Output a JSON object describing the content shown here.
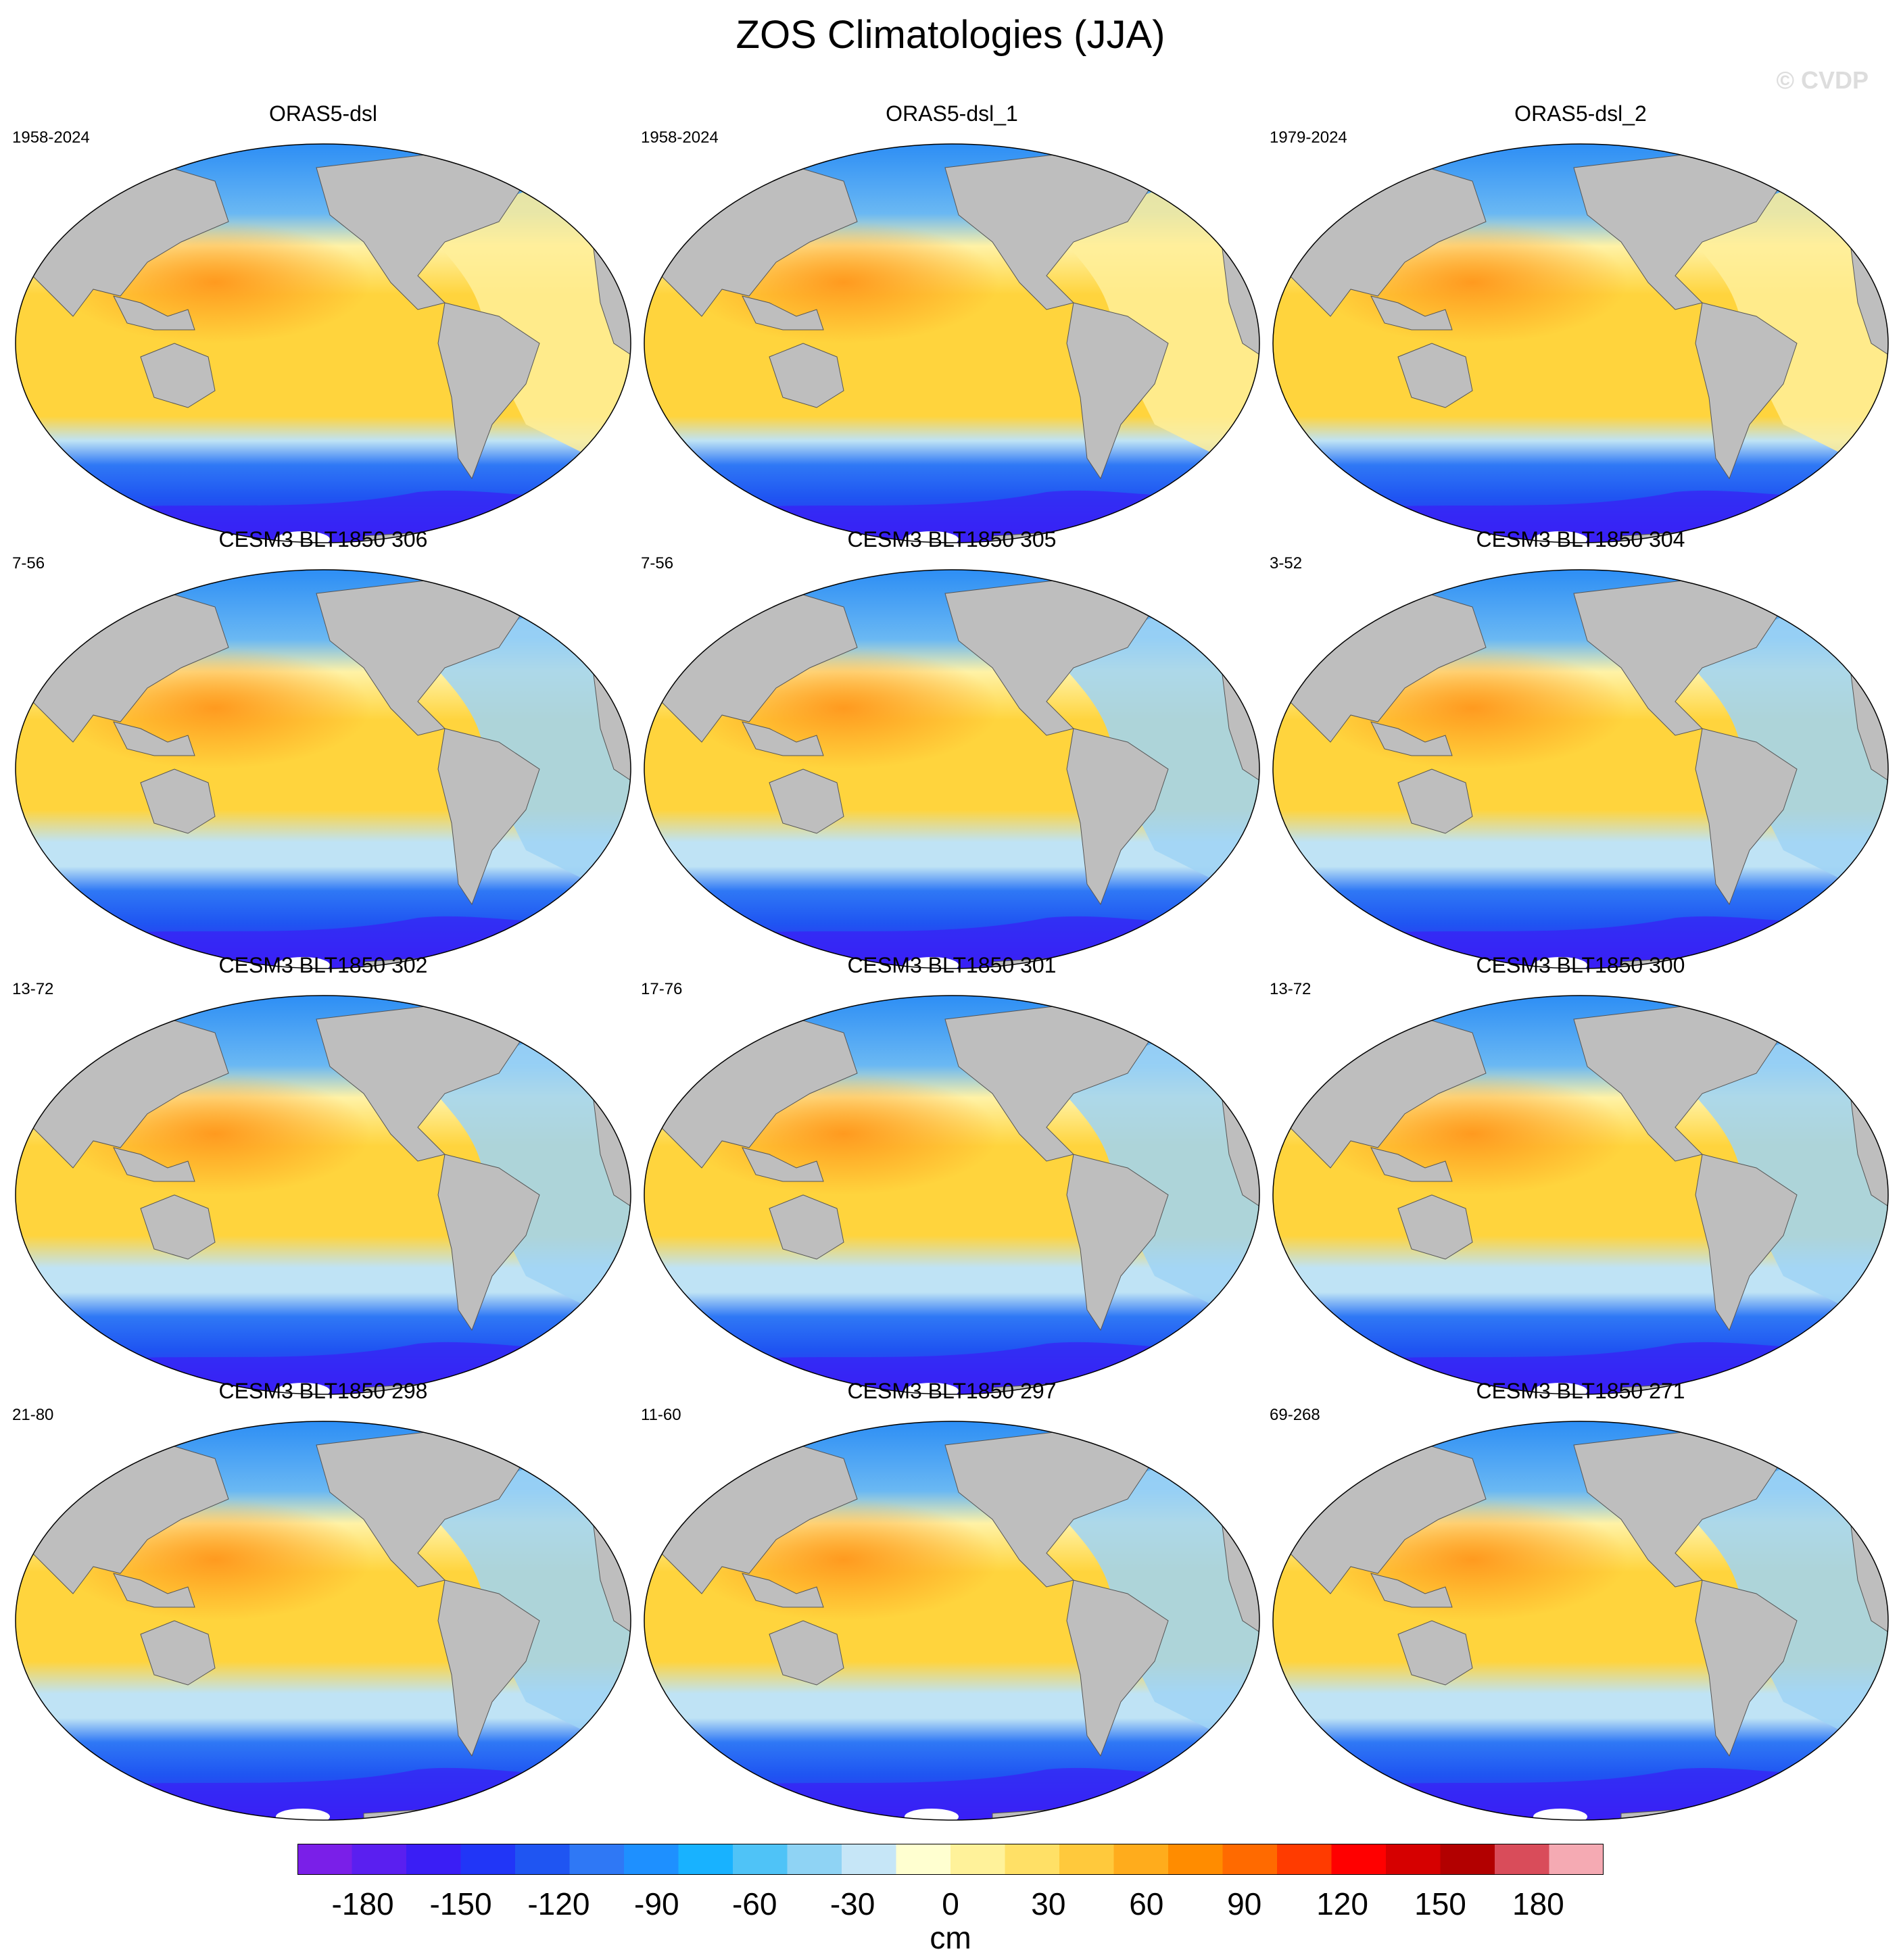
{
  "figure": {
    "title": "ZOS Climatologies (JJA)",
    "watermark": "© CVDP"
  },
  "panels": [
    {
      "title": "ORAS5-dsl",
      "years": "1958-2024"
    },
    {
      "title": "ORAS5-dsl_1",
      "years": "1958-2024"
    },
    {
      "title": "ORAS5-dsl_2",
      "years": "1979-2024"
    },
    {
      "title": "CESM3 BLT1850 306",
      "years": "7-56"
    },
    {
      "title": "CESM3 BLT1850 305",
      "years": "7-56"
    },
    {
      "title": "CESM3 BLT1850 304",
      "years": "3-52"
    },
    {
      "title": "CESM3 BLT1850 302",
      "years": "13-72"
    },
    {
      "title": "CESM3 BLT1850 301",
      "years": "17-76"
    },
    {
      "title": "CESM3 BLT1850 300",
      "years": "13-72"
    },
    {
      "title": "CESM3 BLT1850 298",
      "years": "21-80"
    },
    {
      "title": "CESM3 BLT1850 297",
      "years": "11-60"
    },
    {
      "title": "CESM3 BLT1850 271",
      "years": "69-268"
    }
  ],
  "colorbar": {
    "unit": "cm",
    "tick_labels": [
      "-180",
      "-150",
      "-120",
      "-90",
      "-60",
      "-30",
      "0",
      "30",
      "60",
      "90",
      "120",
      "150",
      "180"
    ],
    "tick_values": [
      -180,
      -150,
      -120,
      -90,
      -60,
      -30,
      0,
      30,
      60,
      90,
      120,
      150,
      180
    ],
    "range": [
      -200,
      200
    ],
    "colors": [
      "#7a1fe8",
      "#5a1ff0",
      "#3a1ef5",
      "#2136f7",
      "#1f55f2",
      "#2f78f5",
      "#1e90ff",
      "#18b2ff",
      "#4fc3f7",
      "#8fd3f4",
      "#c6e6f7",
      "#ffffd0",
      "#fff29a",
      "#ffe066",
      "#ffc93c",
      "#ffac1c",
      "#ff8c00",
      "#ff6a00",
      "#ff3b00",
      "#ff0000",
      "#d60000",
      "#b20000",
      "#d94c5a",
      "#f5aab3"
    ]
  },
  "map_colors": {
    "land": "#bebebe",
    "coast": "#555555",
    "ice": "#ffffff",
    "south_ocean_deep": "#3a1ef5",
    "south_ocean": "#1f55f2",
    "south_ocean_light": "#2f78f5",
    "north_ocean": "#2a8cf5",
    "atlantic": "#9fd4f5",
    "atlantic_obs": "#ffef99",
    "tropics": "#ffd43d",
    "warm_pool": "#ff9a1f",
    "subtropic_light": "#fff2a6",
    "southern_band": "#bfe3f5"
  }
}
